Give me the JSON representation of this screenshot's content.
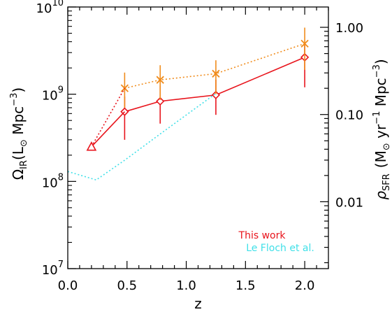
{
  "chart_data": {
    "type": "line",
    "title": "",
    "xlabel": "z",
    "ylabel_left": {
      "symbol": "Ω",
      "sub": "IR",
      "paren_open": "(L",
      "sun": "⊙",
      "rest": " Mpc",
      "sup": "−3",
      "paren_close": ")"
    },
    "ylabel_right": {
      "symbol": "ρ",
      "sub": "SFR",
      "paren_open": "(M",
      "sun": "⊙",
      "yr": " yr",
      "sup1": "−1",
      "mpc": " Mpc",
      "sup2": "−3",
      "paren_close": ")"
    },
    "xlim": [
      0.0,
      2.2
    ],
    "ylim_left": [
      10000000.0,
      10000000000.0
    ],
    "ylim_right": [
      0.00171,
      1.71
    ],
    "yscale": "log",
    "x_ticks": [
      0.0,
      0.5,
      1.0,
      1.5,
      2.0
    ],
    "x_tick_labels": [
      "0.0",
      "0.5",
      "1.0",
      "1.5",
      "2.0"
    ],
    "y_left_ticks": [
      {
        "value": 10000000.0,
        "base": "10",
        "exp": "7"
      },
      {
        "value": 100000000.0,
        "base": "10",
        "exp": "8"
      },
      {
        "value": 1000000000.0,
        "base": "10",
        "exp": "9"
      },
      {
        "value": 10000000000.0,
        "base": "10",
        "exp": "10"
      }
    ],
    "y_right_ticks": [
      {
        "value": 0.01,
        "label": "0.01"
      },
      {
        "value": 0.1,
        "label": "0.10"
      },
      {
        "value": 1.0,
        "label": "1.00"
      }
    ],
    "series": [
      {
        "name": "This work",
        "color": "#e8141c",
        "style": "solid",
        "marker": "diamond",
        "x": [
          0.48,
          0.78,
          1.25,
          2.0
        ],
        "y": [
          630000000.0,
          830000000.0,
          980000000.0,
          2650000000.0
        ],
        "err_low": [
          300000000.0,
          460000000.0,
          580000000.0,
          1200000000.0
        ],
        "err_high": [
          940000000.0,
          1260000000.0,
          1470000000.0,
          3900000000.0
        ]
      },
      {
        "name": "",
        "color": "#f08c1c",
        "style": "dotted",
        "marker": "x",
        "x": [
          0.48,
          0.78,
          1.25,
          2.0
        ],
        "y": [
          1170000000.0,
          1460000000.0,
          1720000000.0,
          3800000000.0
        ],
        "err_low": [
          700000000.0,
          860000000.0,
          1000000000.0,
          1900000000.0
        ],
        "err_high": [
          1770000000.0,
          2150000000.0,
          2450000000.0,
          5800000000.0
        ]
      },
      {
        "name": "",
        "color": "#e8141c",
        "style": "dotted",
        "x": [
          0.2,
          0.48
        ],
        "y": [
          250000000.0,
          1170000000.0
        ]
      },
      {
        "name": "",
        "color": "#e8141c",
        "style": "solid",
        "x": [
          0.2,
          0.48
        ],
        "y": [
          250000000.0,
          630000000.0
        ]
      },
      {
        "name": "",
        "color": "#e8141c",
        "marker": "triangle",
        "x": [
          0.2
        ],
        "y": [
          250000000.0
        ]
      },
      {
        "name": "Le Floch et al.",
        "color": "#40e0e8",
        "style": "dotted",
        "x": [
          0.0,
          0.24,
          0.48,
          0.78,
          1.25
        ],
        "y": [
          130000000.0,
          104000000.0,
          175000000.0,
          350000000.0,
          1020000000.0
        ]
      }
    ],
    "legend": {
      "placement": "bottom-right",
      "entries": [
        "This work",
        "Le Floch et al."
      ]
    }
  }
}
